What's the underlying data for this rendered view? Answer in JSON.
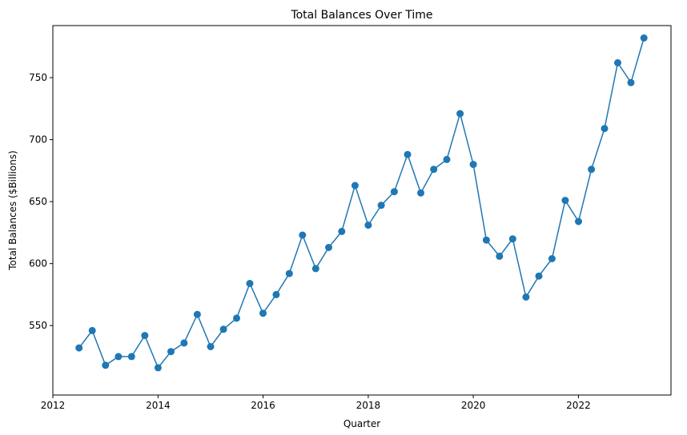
{
  "chart_data": {
    "type": "line",
    "title": "Total Balances Over Time",
    "xlabel": "Quarter",
    "ylabel": "Total Balances ($Billions)",
    "x_ticks": [
      "2012",
      "2014",
      "2016",
      "2018",
      "2020",
      "2022"
    ],
    "y_ticks": [
      "550",
      "600",
      "650",
      "700",
      "750"
    ],
    "xlim": [
      "2012-01-01",
      "2023-10-06"
    ],
    "ylim": [
      494,
      792
    ],
    "grid": false,
    "legend": "none",
    "series": [
      {
        "color": "#1f77b4",
        "marker": "circle",
        "x": [
          "2012-07-01",
          "2012-10-01",
          "2013-01-01",
          "2013-04-01",
          "2013-07-01",
          "2013-10-01",
          "2014-01-01",
          "2014-04-01",
          "2014-07-01",
          "2014-10-01",
          "2015-01-01",
          "2015-04-01",
          "2015-07-01",
          "2015-10-01",
          "2016-01-01",
          "2016-04-01",
          "2016-07-01",
          "2016-10-01",
          "2017-01-01",
          "2017-04-01",
          "2017-07-01",
          "2017-10-01",
          "2018-01-01",
          "2018-04-01",
          "2018-07-01",
          "2018-10-01",
          "2019-01-01",
          "2019-04-01",
          "2019-07-01",
          "2019-10-01",
          "2020-01-01",
          "2020-04-01",
          "2020-07-01",
          "2020-10-01",
          "2021-01-01",
          "2021-04-01",
          "2021-07-01",
          "2021-10-01",
          "2022-01-01",
          "2022-04-01",
          "2022-07-01",
          "2022-10-01",
          "2023-01-01",
          "2023-04-01"
        ],
        "values": [
          532,
          546,
          518,
          525,
          525,
          542,
          516,
          529,
          536,
          559,
          533,
          547,
          556,
          584,
          560,
          575,
          592,
          623,
          596,
          613,
          626,
          663,
          631,
          647,
          658,
          688,
          657,
          676,
          684,
          721,
          680,
          619,
          606,
          620,
          573,
          590,
          604,
          651,
          634,
          676,
          709,
          762,
          746,
          782
        ]
      }
    ]
  }
}
